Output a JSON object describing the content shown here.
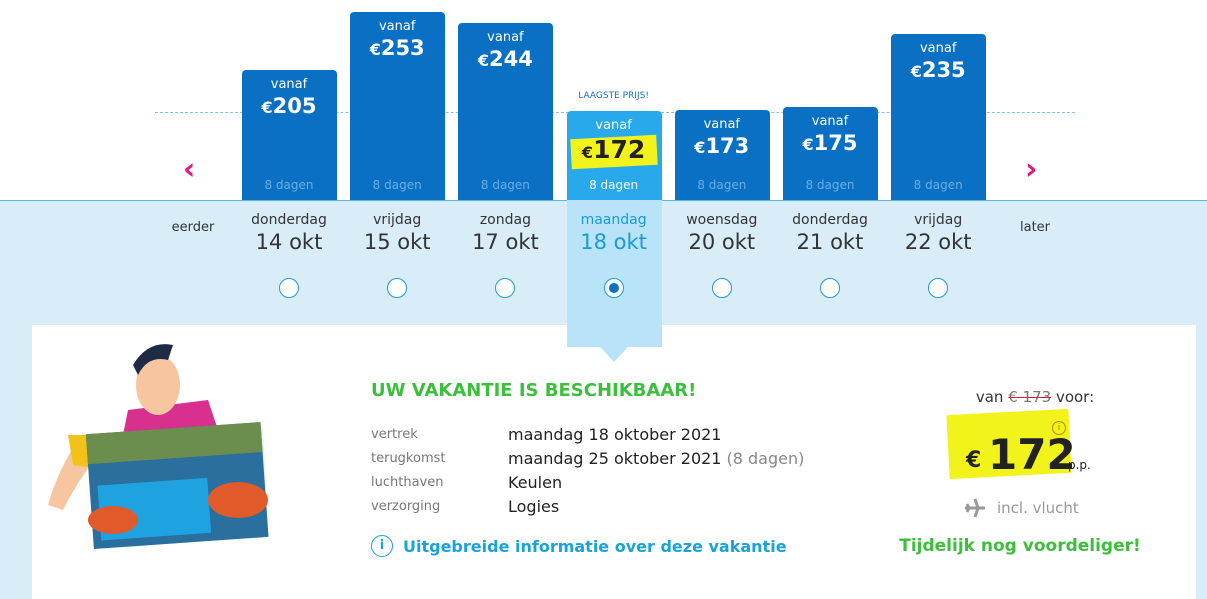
{
  "calendar": {
    "earlier": "eerder",
    "later": "later",
    "lowest_label": "LAAGSTE PRIJS!",
    "from_label": "vanaf",
    "currency": "€",
    "selected": 3,
    "days": [
      {
        "weekday": "donderdag",
        "date": "14 okt",
        "price": 205,
        "duration": "8 dagen"
      },
      {
        "weekday": "vrijdag",
        "date": "15 okt",
        "price": 253,
        "duration": "8 dagen"
      },
      {
        "weekday": "zondag",
        "date": "17 okt",
        "price": 244,
        "duration": "8 dagen"
      },
      {
        "weekday": "maandag",
        "date": "18 okt",
        "price": 172,
        "duration": "8 dagen"
      },
      {
        "weekday": "woensdag",
        "date": "20 okt",
        "price": 173,
        "duration": "8 dagen"
      },
      {
        "weekday": "donderdag",
        "date": "21 okt",
        "price": 175,
        "duration": "8 dagen"
      },
      {
        "weekday": "vrijdag",
        "date": "22 okt",
        "price": 235,
        "duration": "8 dagen"
      }
    ]
  },
  "details": {
    "title": "UW VAKANTIE IS BESCHIKBAAR!",
    "rows": [
      {
        "label": "vertrek",
        "value": "maandag 18 oktober 2021"
      },
      {
        "label": "terugkomst",
        "value": "maandag 25 oktober 2021",
        "note": "(8 dagen)"
      },
      {
        "label": "luchthaven",
        "value": "Keulen"
      },
      {
        "label": "verzorging",
        "value": "Logies"
      }
    ],
    "info_link": "Uitgebreide informatie over deze vakantie"
  },
  "price_box": {
    "from": "van",
    "old_price": "€ 173",
    "for": "voor:",
    "currency": "€",
    "price": 172,
    "per_person": "p.p.",
    "flight": "incl. vlucht",
    "promo": "Tijdelijk nog voordeliger!"
  }
}
